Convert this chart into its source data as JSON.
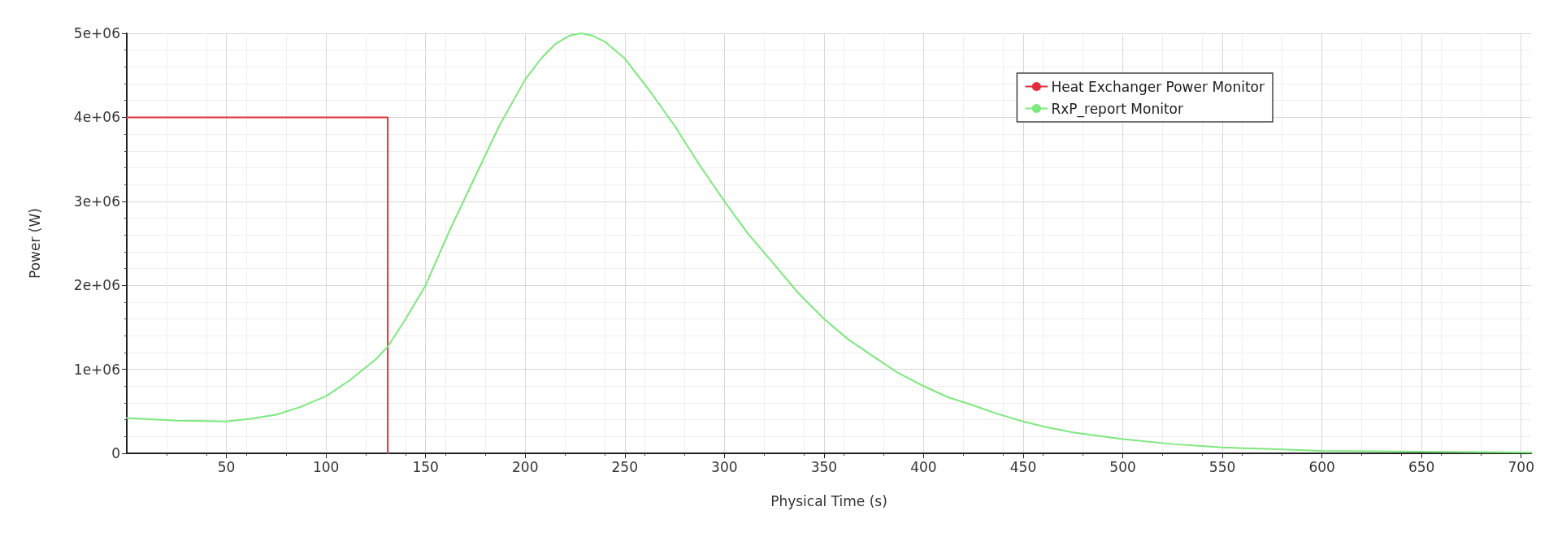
{
  "chart_data": {
    "type": "line",
    "xlabel": "Physical Time (s)",
    "ylabel": "Power (W)",
    "xlim": [
      0,
      705
    ],
    "xticks": [
      50,
      100,
      150,
      200,
      250,
      300,
      350,
      400,
      450,
      500,
      550,
      600,
      650,
      700
    ],
    "ylim": [
      0,
      5000000
    ],
    "yticks": [
      {
        "value": 0,
        "label": "0"
      },
      {
        "value": 1000000,
        "label": "1e+06"
      },
      {
        "value": 2000000,
        "label": "2e+06"
      },
      {
        "value": 3000000,
        "label": "3e+06"
      },
      {
        "value": 4000000,
        "label": "4e+06"
      },
      {
        "value": 5000000,
        "label": "5e+06"
      }
    ],
    "grid": true,
    "legend": "top right",
    "marker": "none",
    "line_style": "solid",
    "series": [
      {
        "name": "Heat Exchanger Power Monitor",
        "type": "step",
        "color": "#e0303c",
        "x": [
          0,
          131
        ],
        "values": [
          4000000,
          0
        ]
      },
      {
        "name": "RxP_report Monitor",
        "color": "#7de87d",
        "x": [
          0,
          25,
          50,
          62,
          75,
          87,
          100,
          112,
          125,
          131,
          140,
          150,
          162,
          175,
          187,
          200,
          208,
          215,
          222,
          228,
          234,
          240,
          250,
          262,
          275,
          287,
          300,
          312,
          325,
          337,
          350,
          362,
          375,
          387,
          400,
          412,
          425,
          437,
          450,
          462,
          475,
          500,
          525,
          550,
          575,
          600,
          650,
          705
        ],
        "values": [
          420000,
          390000,
          380000,
          410000,
          460000,
          550000,
          680000,
          870000,
          1120000,
          1270000,
          1600000,
          2000000,
          2650000,
          3300000,
          3900000,
          4450000,
          4700000,
          4870000,
          4970000,
          5000000,
          4970000,
          4900000,
          4700000,
          4330000,
          3900000,
          3450000,
          3000000,
          2610000,
          2250000,
          1910000,
          1600000,
          1360000,
          1150000,
          960000,
          800000,
          670000,
          570000,
          470000,
          380000,
          310000,
          250000,
          170000,
          110000,
          70000,
          50000,
          30000,
          20000,
          10000
        ]
      }
    ]
  }
}
